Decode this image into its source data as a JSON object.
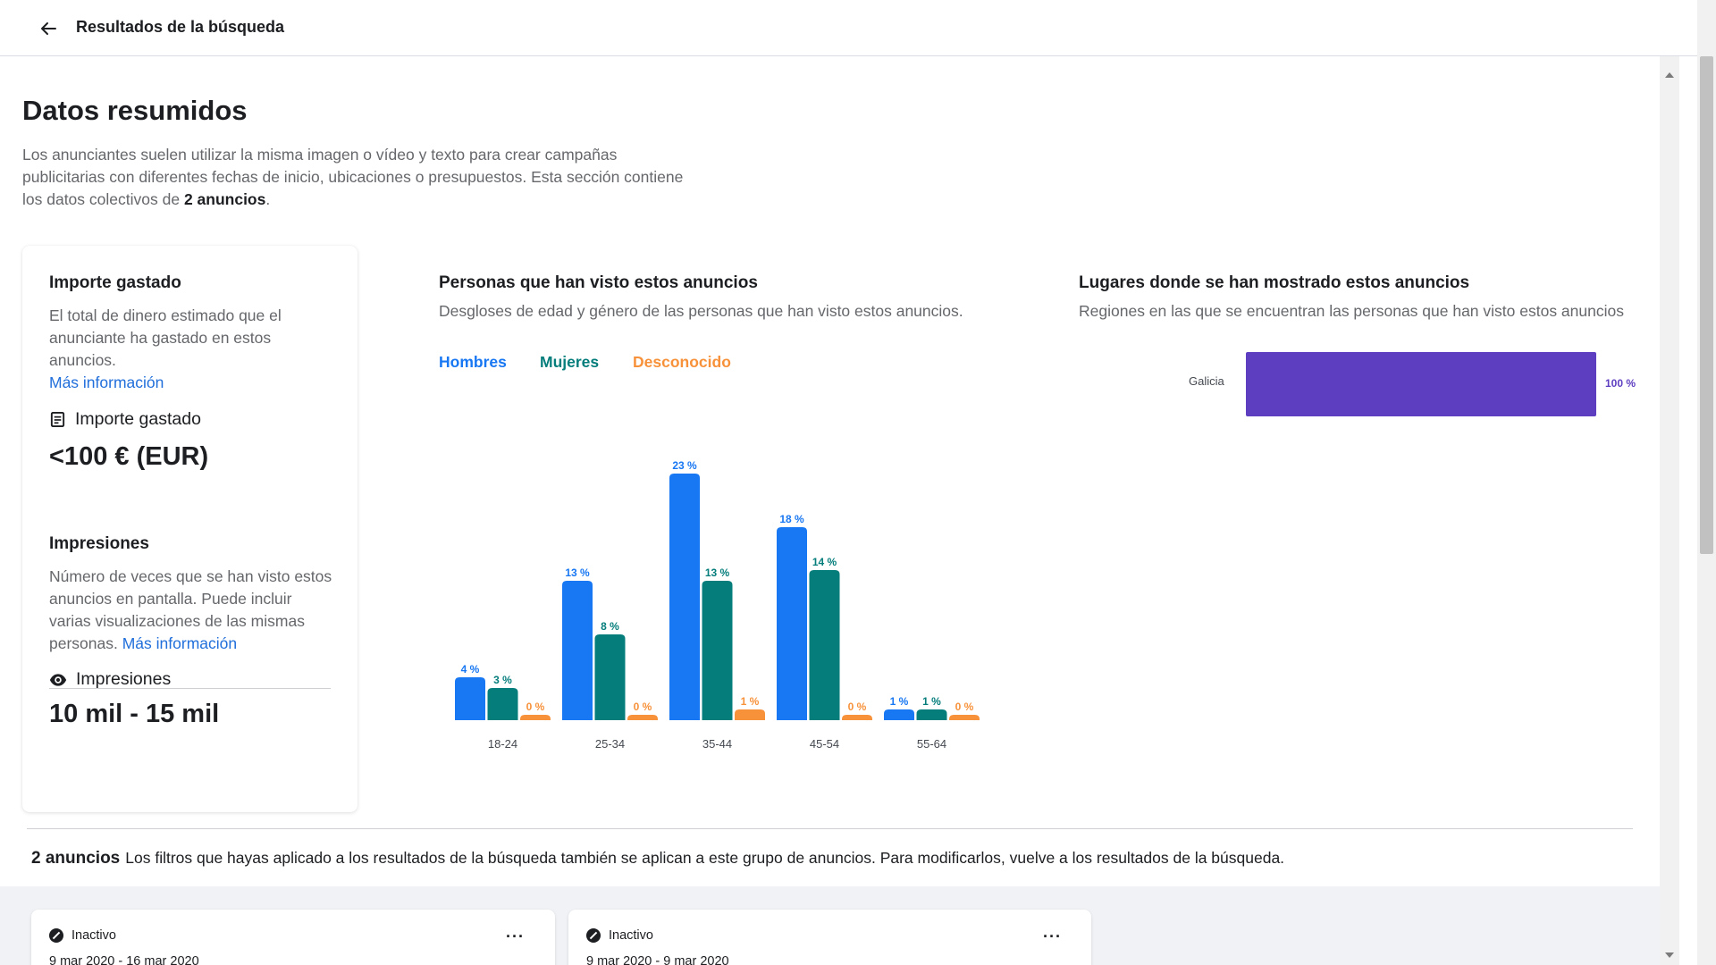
{
  "topbar": {
    "back_label": "back",
    "title": "Resultados de la búsqueda"
  },
  "summary": {
    "title": "Datos resumidos",
    "intro_text": "Los anunciantes suelen utilizar la misma imagen o vídeo y texto para crear campañas publicitarias con diferentes fechas de inicio, ubicaciones o presupuestos. Esta sección contiene los datos colectivos de ",
    "intro_bold": "2 anuncios",
    "intro_end": "."
  },
  "spend": {
    "heading": "Importe gastado",
    "description": "El total de dinero estimado que el anunciante ha gastado en estos anuncios.",
    "link": "Más información",
    "metric_label": "Importe gastado",
    "metric_value": "<100 € (EUR)"
  },
  "impressions": {
    "heading": "Impresiones",
    "description": "Número de veces que se han visto estos anuncios en pantalla. Puede incluir varias visualizaciones de las mismas personas.",
    "link": "Más información",
    "metric_label": "Impresiones",
    "metric_value": "10 mil - 15 mil"
  },
  "audience": {
    "heading": "Personas que han visto estos anuncios",
    "subheading": "Desgloses de edad y género de las personas que han visto estos anuncios.",
    "legend": [
      {
        "label": "Hombres",
        "color": "#1877f2"
      },
      {
        "label": "Mujeres",
        "color": "#047d7b"
      },
      {
        "label": "Desconocido",
        "color": "#f7923b"
      }
    ]
  },
  "locations": {
    "heading": "Lugares donde se han mostrado estos anuncios",
    "subheading": "Regiones en las que se encuentran las personas que han visto estos anuncios",
    "bar_color": "#5e3ec0"
  },
  "chart_data": [
    {
      "type": "bar",
      "categories": [
        "18-24",
        "25-34",
        "35-44",
        "45-54",
        "55-64"
      ],
      "series": [
        {
          "name": "Hombres",
          "values": [
            4,
            13,
            23,
            18,
            1
          ],
          "labels": [
            "4 %",
            "13 %",
            "23 %",
            "18 %",
            "1 %"
          ],
          "color": "#1877f2"
        },
        {
          "name": "Mujeres",
          "values": [
            3,
            8,
            13,
            14,
            1
          ],
          "labels": [
            "3 %",
            "8 %",
            "13 %",
            "14 %",
            "1 %"
          ],
          "color": "#047d7b"
        },
        {
          "name": "Desconocido",
          "values": [
            0,
            0,
            1,
            0,
            0
          ],
          "labels": [
            "0 %",
            "0 %",
            "1 %",
            "0 %",
            "0 %"
          ],
          "color": "#f7923b"
        }
      ],
      "ylim": [
        0,
        23
      ]
    },
    {
      "type": "bar",
      "orientation": "horizontal",
      "categories": [
        "Galicia"
      ],
      "values": [
        100
      ],
      "labels": [
        "100 %"
      ]
    }
  ],
  "results": {
    "count_label": "2 anuncios",
    "note": "Los filtros que hayas aplicado a los resultados de la búsqueda también se aplican a este grupo de anuncios. Para modificarlos, vuelve a los resultados de la búsqueda."
  },
  "ads": [
    {
      "status": "Inactivo",
      "dates": "9 mar 2020 - 16 mar 2020",
      "more": "···"
    },
    {
      "status": "Inactivo",
      "dates": "9 mar 2020 - 9 mar 2020",
      "more": "···"
    }
  ]
}
